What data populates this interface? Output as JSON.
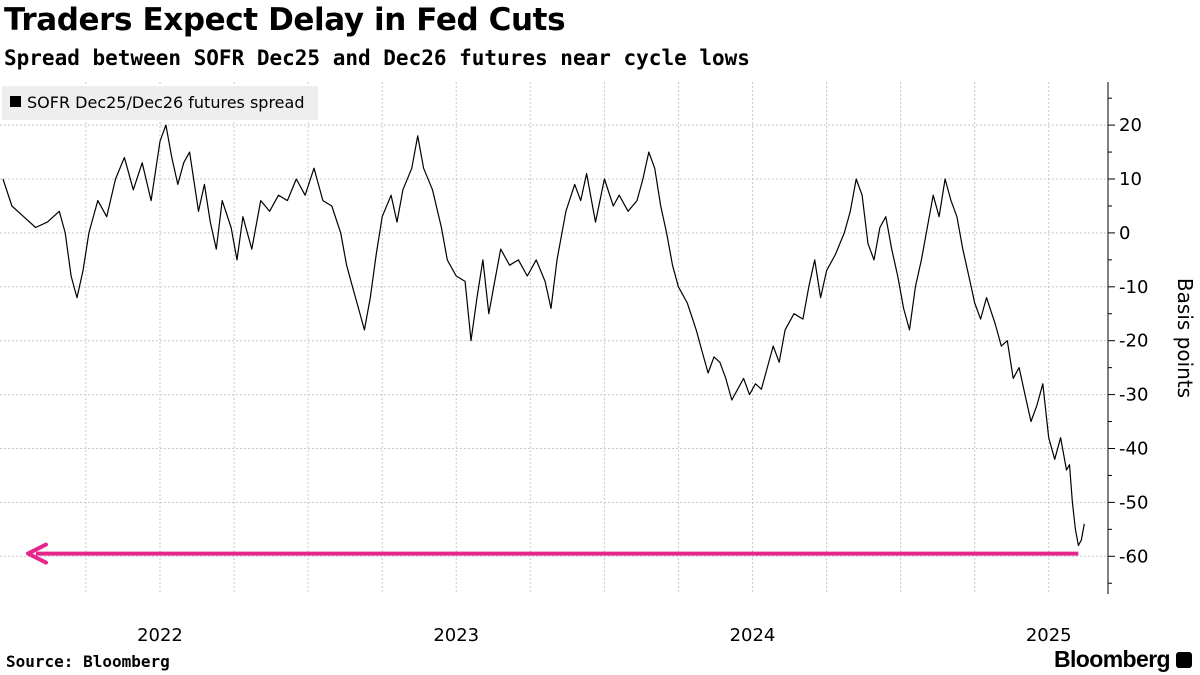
{
  "title": "Traders Expect Delay in Fed Cuts",
  "subtitle": "Spread between SOFR Dec25 and Dec26 futures near cycle lows",
  "source": "Source: Bloomberg",
  "brand": "Bloomberg",
  "colors": {
    "series": "#000000",
    "annotation": "#e6268c",
    "grid": "#c8c8c8",
    "legend_bg": "#eeeeee"
  },
  "chart_data": {
    "type": "line",
    "ylabel": "Basis points",
    "xlabel": "",
    "ylim": [
      -67,
      28
    ],
    "yticks": [
      20,
      10,
      0,
      -10,
      -20,
      -30,
      -40,
      -50,
      -60
    ],
    "xlim": [
      2021.46,
      2025.2
    ],
    "xticks": [
      {
        "value": 2022.0,
        "label": "2022"
      },
      {
        "value": 2023.0,
        "label": "2023"
      },
      {
        "value": 2024.0,
        "label": "2024"
      },
      {
        "value": 2025.0,
        "label": "2025"
      }
    ],
    "xgrid": [
      2021.75,
      2022.0,
      2022.25,
      2022.5,
      2022.75,
      2023.0,
      2023.25,
      2023.5,
      2023.75,
      2024.0,
      2024.25,
      2024.5,
      2024.75,
      2025.0
    ],
    "legend": [
      "SOFR Dec25/Dec26 futures spread"
    ],
    "series": [
      {
        "name": "SOFR Dec25/Dec26 futures spread",
        "points": [
          [
            2021.47,
            10
          ],
          [
            2021.5,
            5
          ],
          [
            2021.54,
            3
          ],
          [
            2021.58,
            1
          ],
          [
            2021.62,
            2
          ],
          [
            2021.66,
            4
          ],
          [
            2021.68,
            0
          ],
          [
            2021.7,
            -8
          ],
          [
            2021.72,
            -12
          ],
          [
            2021.74,
            -7
          ],
          [
            2021.76,
            0
          ],
          [
            2021.79,
            6
          ],
          [
            2021.82,
            3
          ],
          [
            2021.85,
            10
          ],
          [
            2021.88,
            14
          ],
          [
            2021.91,
            8
          ],
          [
            2021.94,
            13
          ],
          [
            2021.97,
            6
          ],
          [
            2022.0,
            17
          ],
          [
            2022.02,
            20
          ],
          [
            2022.04,
            14
          ],
          [
            2022.06,
            9
          ],
          [
            2022.08,
            13
          ],
          [
            2022.1,
            15
          ],
          [
            2022.13,
            4
          ],
          [
            2022.15,
            9
          ],
          [
            2022.17,
            2
          ],
          [
            2022.19,
            -3
          ],
          [
            2022.21,
            6
          ],
          [
            2022.24,
            1
          ],
          [
            2022.26,
            -5
          ],
          [
            2022.28,
            3
          ],
          [
            2022.31,
            -3
          ],
          [
            2022.34,
            6
          ],
          [
            2022.37,
            4
          ],
          [
            2022.4,
            7
          ],
          [
            2022.43,
            6
          ],
          [
            2022.46,
            10
          ],
          [
            2022.49,
            7
          ],
          [
            2022.52,
            12
          ],
          [
            2022.55,
            6
          ],
          [
            2022.58,
            5
          ],
          [
            2022.61,
            0
          ],
          [
            2022.63,
            -6
          ],
          [
            2022.65,
            -10
          ],
          [
            2022.67,
            -14
          ],
          [
            2022.69,
            -18
          ],
          [
            2022.71,
            -12
          ],
          [
            2022.73,
            -4
          ],
          [
            2022.75,
            3
          ],
          [
            2022.78,
            7
          ],
          [
            2022.8,
            2
          ],
          [
            2022.82,
            8
          ],
          [
            2022.85,
            12
          ],
          [
            2022.87,
            18
          ],
          [
            2022.89,
            12
          ],
          [
            2022.92,
            8
          ],
          [
            2022.95,
            1
          ],
          [
            2022.97,
            -5
          ],
          [
            2023.0,
            -8
          ],
          [
            2023.03,
            -9
          ],
          [
            2023.05,
            -20
          ],
          [
            2023.07,
            -12
          ],
          [
            2023.09,
            -5
          ],
          [
            2023.11,
            -15
          ],
          [
            2023.13,
            -9
          ],
          [
            2023.15,
            -3
          ],
          [
            2023.18,
            -6
          ],
          [
            2023.21,
            -5
          ],
          [
            2023.24,
            -8
          ],
          [
            2023.27,
            -5
          ],
          [
            2023.3,
            -9
          ],
          [
            2023.32,
            -14
          ],
          [
            2023.34,
            -5
          ],
          [
            2023.37,
            4
          ],
          [
            2023.4,
            9
          ],
          [
            2023.42,
            6
          ],
          [
            2023.44,
            11
          ],
          [
            2023.47,
            2
          ],
          [
            2023.5,
            10
          ],
          [
            2023.53,
            5
          ],
          [
            2023.55,
            7
          ],
          [
            2023.58,
            4
          ],
          [
            2023.61,
            6
          ],
          [
            2023.63,
            10
          ],
          [
            2023.65,
            15
          ],
          [
            2023.67,
            12
          ],
          [
            2023.69,
            5
          ],
          [
            2023.71,
            0
          ],
          [
            2023.73,
            -6
          ],
          [
            2023.75,
            -10
          ],
          [
            2023.78,
            -13
          ],
          [
            2023.81,
            -18
          ],
          [
            2023.83,
            -22
          ],
          [
            2023.85,
            -26
          ],
          [
            2023.87,
            -23
          ],
          [
            2023.89,
            -24
          ],
          [
            2023.91,
            -27
          ],
          [
            2023.93,
            -31
          ],
          [
            2023.95,
            -29
          ],
          [
            2023.97,
            -27
          ],
          [
            2023.99,
            -30
          ],
          [
            2024.01,
            -28
          ],
          [
            2024.03,
            -29
          ],
          [
            2024.05,
            -25
          ],
          [
            2024.07,
            -21
          ],
          [
            2024.09,
            -24
          ],
          [
            2024.11,
            -18
          ],
          [
            2024.14,
            -15
          ],
          [
            2024.17,
            -16
          ],
          [
            2024.19,
            -10
          ],
          [
            2024.21,
            -5
          ],
          [
            2024.23,
            -12
          ],
          [
            2024.25,
            -7
          ],
          [
            2024.28,
            -4
          ],
          [
            2024.31,
            0
          ],
          [
            2024.33,
            4
          ],
          [
            2024.35,
            10
          ],
          [
            2024.37,
            7
          ],
          [
            2024.39,
            -2
          ],
          [
            2024.41,
            -5
          ],
          [
            2024.43,
            1
          ],
          [
            2024.45,
            3
          ],
          [
            2024.47,
            -3
          ],
          [
            2024.49,
            -8
          ],
          [
            2024.51,
            -14
          ],
          [
            2024.53,
            -18
          ],
          [
            2024.55,
            -10
          ],
          [
            2024.57,
            -5
          ],
          [
            2024.59,
            1
          ],
          [
            2024.61,
            7
          ],
          [
            2024.63,
            3
          ],
          [
            2024.65,
            10
          ],
          [
            2024.67,
            6
          ],
          [
            2024.69,
            3
          ],
          [
            2024.71,
            -3
          ],
          [
            2024.73,
            -8
          ],
          [
            2024.75,
            -13
          ],
          [
            2024.77,
            -16
          ],
          [
            2024.79,
            -12
          ],
          [
            2024.82,
            -17
          ],
          [
            2024.84,
            -21
          ],
          [
            2024.86,
            -20
          ],
          [
            2024.88,
            -27
          ],
          [
            2024.9,
            -25
          ],
          [
            2024.92,
            -30
          ],
          [
            2024.94,
            -35
          ],
          [
            2024.96,
            -32
          ],
          [
            2024.98,
            -28
          ],
          [
            2025.0,
            -38
          ],
          [
            2025.02,
            -42
          ],
          [
            2025.04,
            -38
          ],
          [
            2025.06,
            -44
          ],
          [
            2025.07,
            -43
          ],
          [
            2025.08,
            -50
          ],
          [
            2025.09,
            -55
          ],
          [
            2025.1,
            -58
          ],
          [
            2025.11,
            -57
          ],
          [
            2025.12,
            -54
          ]
        ]
      }
    ],
    "annotations": [
      {
        "type": "arrow-left",
        "y": -59.5,
        "x_from": 2025.1,
        "x_to": 2021.46,
        "label": ""
      }
    ]
  }
}
